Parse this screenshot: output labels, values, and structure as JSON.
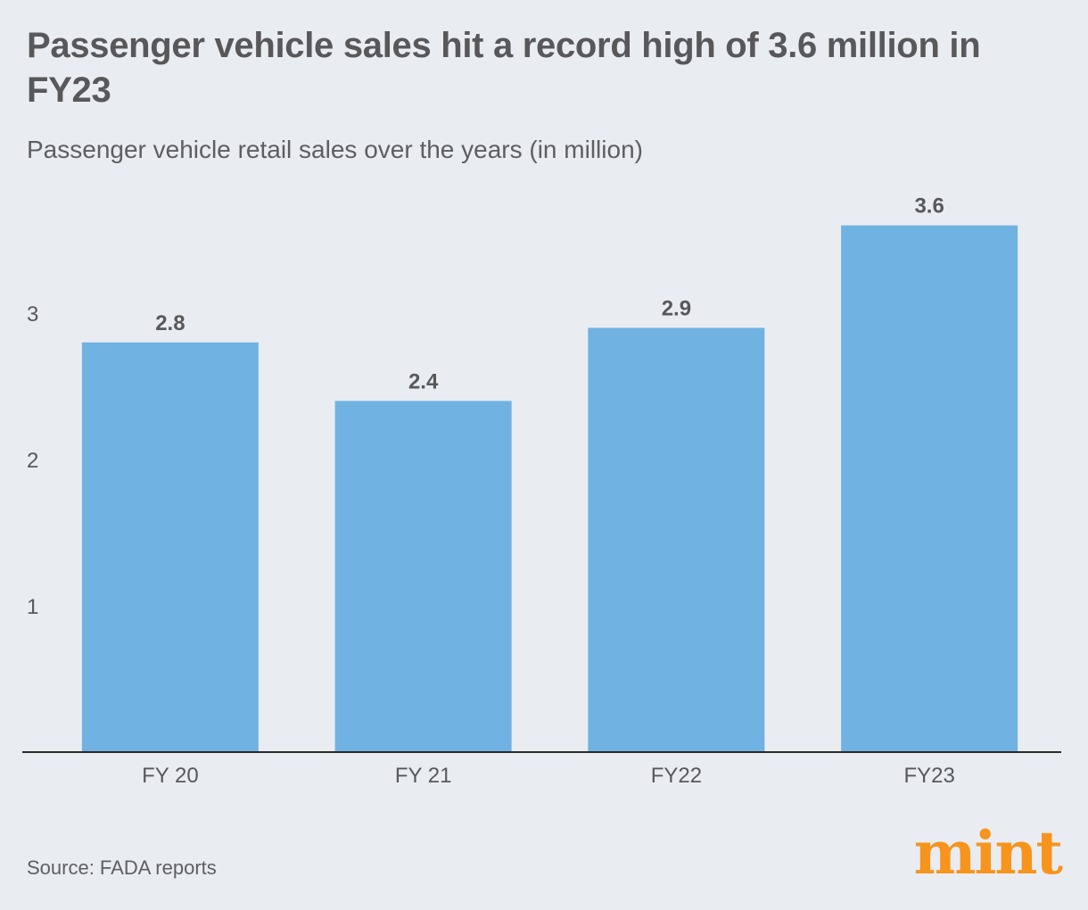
{
  "header": {
    "title": "Passenger vehicle sales hit a record high of 3.6 million in FY23",
    "subtitle": "Passenger vehicle retail sales over the years (in million)"
  },
  "footer": {
    "source": "Source: FADA reports",
    "logo": "mint"
  },
  "colors": {
    "bar": "#70b2e2",
    "text": "#58585b",
    "axis": "#2b2b2b",
    "logo": "#f7941d",
    "background": "#e9edf1"
  },
  "chart_data": {
    "type": "bar",
    "categories": [
      "FY 20",
      "FY 21",
      "FY22",
      "FY23"
    ],
    "values": [
      2.8,
      2.4,
      2.9,
      3.6
    ],
    "data_labels": [
      "2.8",
      "2.4",
      "2.9",
      "3.6"
    ],
    "title": "Passenger vehicle sales hit a record high of 3.6 million in FY23",
    "subtitle": "Passenger vehicle retail sales over the years (in million)",
    "xlabel": "",
    "ylabel": "",
    "yticks": [
      1,
      2,
      3
    ],
    "ylim": [
      0,
      4
    ],
    "grid": false,
    "legend": "none"
  }
}
